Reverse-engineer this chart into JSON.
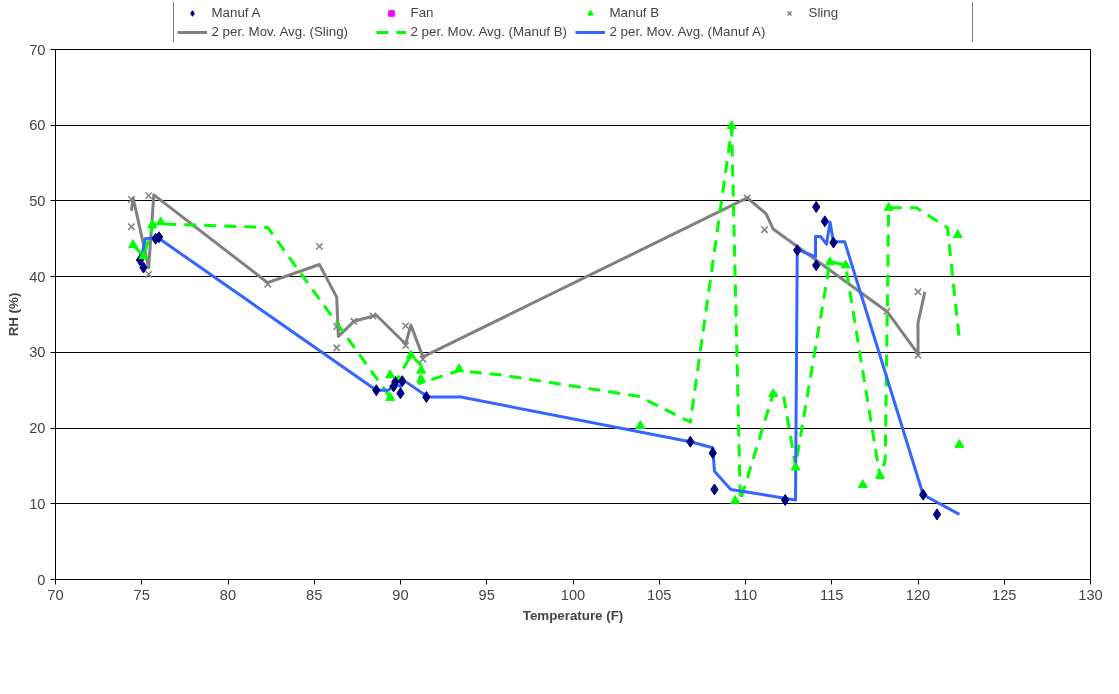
{
  "chart_data": {
    "type": "scatter",
    "xlabel": "Temperature (F)",
    "ylabel": "RH (%)",
    "xlim": [
      70,
      130
    ],
    "xticks": [
      70,
      75,
      80,
      85,
      90,
      95,
      100,
      105,
      110,
      115,
      120,
      125,
      130
    ],
    "ylim": [
      0,
      70
    ],
    "yticks": [
      0,
      10,
      20,
      30,
      40,
      50,
      60,
      70
    ],
    "grid": "y",
    "legend": "top",
    "series": [
      {
        "name": "Manuf A",
        "marker": "diamond",
        "color": "#000080",
        "x": [
          74.9,
          75.1,
          75.8,
          76.0,
          88.6,
          89.6,
          89.7,
          90.0,
          90.1,
          91.5,
          106.8,
          108.1,
          108.2,
          112.3,
          113.0,
          114.1,
          114.1,
          114.6,
          115.1,
          120.3,
          121.1
        ],
        "values": [
          42.2,
          41.2,
          45.0,
          45.2,
          25.0,
          25.5,
          26.1,
          24.6,
          26.2,
          24.1,
          18.2,
          16.7,
          11.9,
          10.5,
          43.5,
          49.2,
          41.5,
          47.3,
          44.5,
          11.2,
          8.6
        ]
      },
      {
        "name": "Fan",
        "marker": "square",
        "color": "#ff00ff"
      },
      {
        "name": "Manuf B",
        "marker": "triangle",
        "color": "#00ff00",
        "x": [
          74.5,
          75.1,
          75.6,
          76.1,
          89.4,
          89.4,
          90.6,
          91.2,
          91.2,
          93.4,
          103.9,
          109.2,
          109.4,
          111.6,
          112.9,
          114.9,
          115.8,
          116.8,
          117.8,
          118.3,
          122.3,
          122.4
        ],
        "values": [
          44.2,
          42.7,
          46.8,
          47.2,
          27.0,
          24.0,
          29.6,
          27.6,
          26.4,
          27.8,
          20.3,
          59.9,
          10.4,
          24.5,
          14.8,
          41.9,
          41.5,
          12.5,
          13.7,
          49.1,
          45.5,
          17.8
        ]
      },
      {
        "name": "Sling",
        "marker": "cross",
        "color": "#808080",
        "x": [
          74.4,
          74.4,
          75.4,
          75.4,
          82.3,
          85.3,
          86.3,
          86.3,
          87.3,
          88.4,
          90.3,
          90.3,
          91.3,
          110.1,
          111.1,
          118.2,
          120.0,
          120.0
        ],
        "values": [
          50.2,
          46.6,
          50.7,
          40.3,
          39.0,
          44.0,
          33.4,
          30.6,
          34.1,
          34.8,
          33.5,
          30.9,
          29.1,
          50.4,
          46.2,
          35.4,
          29.6,
          38.0
        ]
      },
      {
        "name": "2 per. Mov. Avg. (Sling)",
        "type": "line",
        "line_style": "solid",
        "color": "#808080",
        "x": [
          74.4,
          74.5,
          75.4,
          75.7,
          82.3,
          85.3,
          86.3,
          86.4,
          87.3,
          88.6,
          90.3,
          90.6,
          91.3,
          110.1,
          111.2,
          111.6,
          118.2,
          120.0,
          120.0,
          120.4
        ],
        "values": [
          48.7,
          50.4,
          41.2,
          50.8,
          39.2,
          41.6,
          37.3,
          32.1,
          34.1,
          34.9,
          31.1,
          33.6,
          29.4,
          50.4,
          48.3,
          46.3,
          35.4,
          29.8,
          33.9,
          38.0
        ]
      },
      {
        "name": "2 per. Mov. Avg. (Manuf B)",
        "type": "line",
        "line_style": "dashed",
        "color": "#00ff00",
        "x": [
          74.5,
          75.1,
          75.7,
          82.3,
          89.3,
          90.6,
          91.2,
          91.1,
          93.4,
          95.9,
          103.8,
          106.8,
          109.2,
          109.7,
          111.6,
          112.2,
          112.9,
          114.9,
          115.8,
          117.8,
          118.1,
          118.3,
          119.9,
          121.7,
          122.4
        ],
        "values": [
          44.2,
          42.7,
          47.0,
          46.5,
          24.4,
          29.6,
          28.3,
          25.9,
          27.6,
          27.0,
          24.2,
          20.8,
          59.5,
          10.4,
          24.5,
          24.4,
          15.0,
          42.0,
          41.5,
          13.5,
          15.8,
          49.1,
          49.1,
          46.5,
          31.7
        ]
      },
      {
        "name": "2 per. Mov. Avg. (Manuf A)",
        "type": "line",
        "line_style": "solid",
        "color": "#3366ff",
        "x": [
          74.9,
          75.2,
          75.9,
          88.6,
          89.3,
          89.7,
          90.0,
          90.25,
          91.6,
          93.5,
          106.8,
          108.1,
          108.2,
          109.15,
          112.9,
          113.0,
          114.06,
          114.06,
          114.35,
          114.7,
          114.9,
          115.1,
          115.75,
          120.3,
          122.4
        ],
        "values": [
          41.5,
          45.0,
          45.2,
          25.0,
          25.0,
          25.8,
          25.5,
          26.2,
          24.1,
          24.1,
          18.2,
          17.4,
          14.3,
          11.9,
          10.5,
          43.6,
          42.6,
          45.3,
          45.3,
          44.3,
          47.2,
          44.6,
          44.6,
          11.2,
          8.6
        ]
      }
    ]
  }
}
